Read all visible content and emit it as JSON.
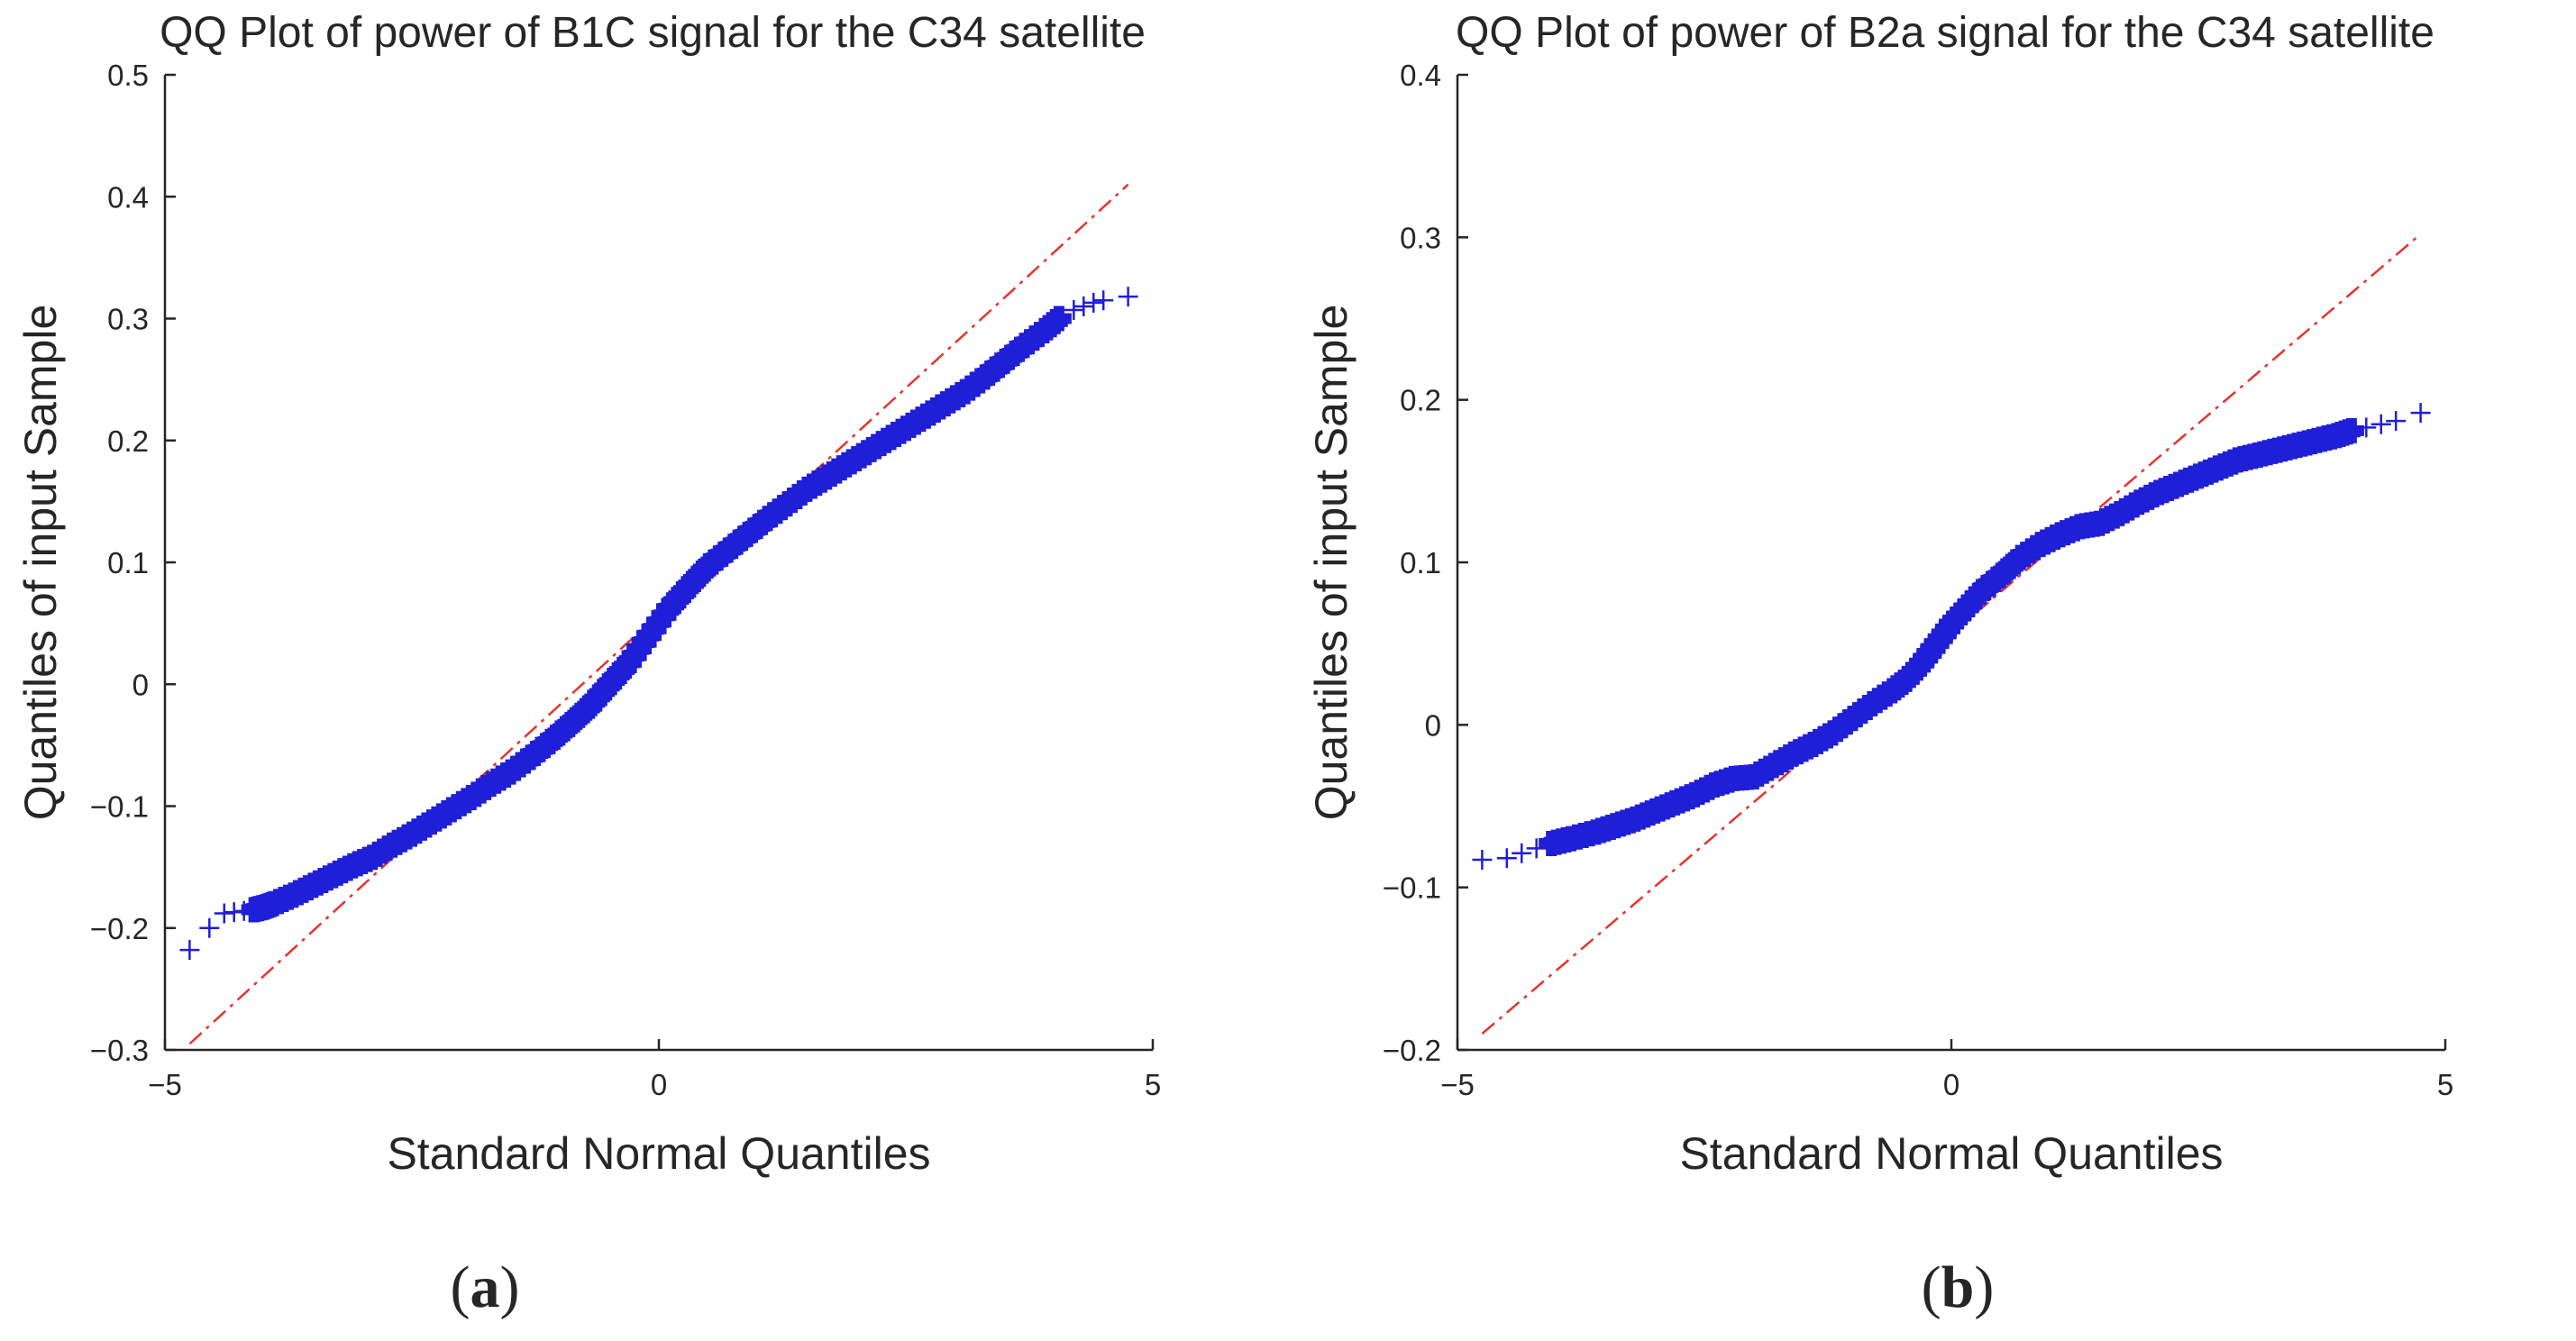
{
  "colors": {
    "marker": "#1f1fd8",
    "reference_line": "#e8322d",
    "axis": "#262626",
    "background": "#ffffff"
  },
  "chart_data": [
    {
      "type": "scatter",
      "panel_label": "a",
      "title": "QQ Plot of power of B1C signal for the C34 satellite",
      "xlabel": "Standard Normal Quantiles",
      "ylabel": "Quantiles of input Sample",
      "xlim": [
        -5,
        5
      ],
      "ylim": [
        -0.3,
        0.5
      ],
      "xticks": [
        -5,
        0,
        5
      ],
      "yticks": [
        -0.3,
        -0.2,
        -0.1,
        0,
        0.1,
        0.2,
        0.3,
        0.4,
        0.5
      ],
      "xtick_labels": [
        "−5",
        "0",
        "5"
      ],
      "ytick_labels": [
        "−0.3",
        "−0.2",
        "−0.1",
        "0",
        "0.1",
        "0.2",
        "0.3",
        "0.4",
        "0.5"
      ],
      "grid": false,
      "marker": "+",
      "reference_line": {
        "style": "dash-dot",
        "x": [
          -4.75,
          4.75
        ],
        "y": [
          -0.295,
          0.41
        ]
      },
      "series": [
        {
          "name": "sample quantiles",
          "points": [
            [
              -4.75,
              -0.218
            ],
            [
              -4.55,
              -0.2
            ],
            [
              -4.4,
              -0.188
            ],
            [
              -4.3,
              -0.187
            ],
            [
              -4.2,
              -0.186
            ],
            [
              -4.1,
              -0.185
            ],
            [
              -4.0,
              -0.183
            ],
            [
              -3.9,
              -0.18
            ],
            [
              -3.7,
              -0.173
            ],
            [
              -3.5,
              -0.165
            ],
            [
              -3.3,
              -0.157
            ],
            [
              -3.1,
              -0.149
            ],
            [
              -2.9,
              -0.142
            ],
            [
              -2.7,
              -0.132
            ],
            [
              -2.5,
              -0.123
            ],
            [
              -2.3,
              -0.113
            ],
            [
              -2.1,
              -0.103
            ],
            [
              -1.9,
              -0.093
            ],
            [
              -1.7,
              -0.082
            ],
            [
              -1.5,
              -0.072
            ],
            [
              -1.3,
              -0.06
            ],
            [
              -1.1,
              -0.047
            ],
            [
              -0.9,
              -0.033
            ],
            [
              -0.7,
              -0.018
            ],
            [
              -0.5,
              0.0
            ],
            [
              -0.3,
              0.018
            ],
            [
              -0.1,
              0.04
            ],
            [
              0.1,
              0.062
            ],
            [
              0.3,
              0.08
            ],
            [
              0.5,
              0.097
            ],
            [
              0.7,
              0.11
            ],
            [
              0.9,
              0.123
            ],
            [
              1.1,
              0.136
            ],
            [
              1.3,
              0.148
            ],
            [
              1.5,
              0.16
            ],
            [
              1.7,
              0.17
            ],
            [
              1.9,
              0.18
            ],
            [
              2.1,
              0.19
            ],
            [
              2.3,
              0.2
            ],
            [
              2.5,
              0.21
            ],
            [
              2.7,
              0.22
            ],
            [
              2.9,
              0.23
            ],
            [
              3.1,
              0.24
            ],
            [
              3.3,
              0.252
            ],
            [
              3.5,
              0.265
            ],
            [
              3.7,
              0.278
            ],
            [
              3.9,
              0.29
            ],
            [
              4.05,
              0.3
            ],
            [
              4.2,
              0.307
            ],
            [
              4.3,
              0.31
            ],
            [
              4.4,
              0.313
            ],
            [
              4.5,
              0.315
            ],
            [
              4.75,
              0.318
            ]
          ]
        }
      ]
    },
    {
      "type": "scatter",
      "panel_label": "b",
      "title": "QQ Plot of power of B2a signal for the C34 satellite",
      "xlabel": "Standard Normal Quantiles",
      "ylabel": "Quantiles of input Sample",
      "xlim": [
        -5,
        5
      ],
      "ylim": [
        -0.2,
        0.4
      ],
      "xticks": [
        -5,
        0,
        5
      ],
      "yticks": [
        -0.2,
        -0.1,
        0,
        0.1,
        0.2,
        0.3,
        0.4
      ],
      "xtick_labels": [
        "−5",
        "0",
        "5"
      ],
      "ytick_labels": [
        "−0.2",
        "−0.1",
        "0",
        "0.1",
        "0.2",
        "0.3",
        "0.4"
      ],
      "grid": false,
      "marker": "+",
      "reference_line": {
        "style": "dash-dot",
        "x": [
          -4.75,
          4.75
        ],
        "y": [
          -0.19,
          0.302
        ]
      },
      "series": [
        {
          "name": "sample quantiles",
          "points": [
            [
              -4.75,
              -0.083
            ],
            [
              -4.5,
              -0.082
            ],
            [
              -4.35,
              -0.079
            ],
            [
              -4.2,
              -0.076
            ],
            [
              -4.05,
              -0.073
            ],
            [
              -3.85,
              -0.07
            ],
            [
              -3.6,
              -0.066
            ],
            [
              -3.4,
              -0.062
            ],
            [
              -3.2,
              -0.058
            ],
            [
              -3.0,
              -0.053
            ],
            [
              -2.8,
              -0.048
            ],
            [
              -2.6,
              -0.043
            ],
            [
              -2.4,
              -0.037
            ],
            [
              -2.2,
              -0.033
            ],
            [
              -2.0,
              -0.032
            ],
            [
              -1.8,
              -0.025
            ],
            [
              -1.6,
              -0.018
            ],
            [
              -1.4,
              -0.012
            ],
            [
              -1.2,
              -0.005
            ],
            [
              -1.0,
              0.004
            ],
            [
              -0.8,
              0.013
            ],
            [
              -0.6,
              0.021
            ],
            [
              -0.45,
              0.028
            ],
            [
              -0.3,
              0.038
            ],
            [
              -0.15,
              0.05
            ],
            [
              0.0,
              0.062
            ],
            [
              0.15,
              0.072
            ],
            [
              0.3,
              0.082
            ],
            [
              0.5,
              0.092
            ],
            [
              0.7,
              0.103
            ],
            [
              0.9,
              0.111
            ],
            [
              1.1,
              0.117
            ],
            [
              1.3,
              0.122
            ],
            [
              1.5,
              0.124
            ],
            [
              1.7,
              0.13
            ],
            [
              1.9,
              0.137
            ],
            [
              2.1,
              0.143
            ],
            [
              2.3,
              0.148
            ],
            [
              2.5,
              0.153
            ],
            [
              2.7,
              0.158
            ],
            [
              2.9,
              0.163
            ],
            [
              3.1,
              0.166
            ],
            [
              3.3,
              0.169
            ],
            [
              3.5,
              0.172
            ],
            [
              3.7,
              0.175
            ],
            [
              3.9,
              0.178
            ],
            [
              4.05,
              0.181
            ],
            [
              4.2,
              0.183
            ],
            [
              4.35,
              0.185
            ],
            [
              4.5,
              0.187
            ],
            [
              4.75,
              0.192
            ]
          ]
        }
      ]
    }
  ]
}
